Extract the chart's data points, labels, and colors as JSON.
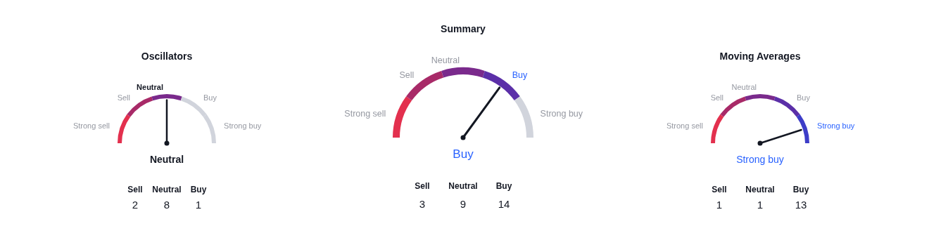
{
  "chart_data": [
    {
      "type": "donut",
      "title": "Oscillators",
      "categories": [
        "Strong sell",
        "Sell",
        "Neutral",
        "Buy",
        "Strong buy"
      ],
      "values": [
        20,
        20,
        20,
        20,
        20
      ],
      "colors": [
        "#e3304e",
        "#a82a68",
        "#7a2a8c",
        "#d1d4dc",
        "#d1d4dc"
      ],
      "needle": "Neutral",
      "annotations": [
        "Neutral",
        "Sell",
        "2",
        "Neutral",
        "8",
        "Buy",
        "1"
      ]
    },
    {
      "type": "donut",
      "title": "Summary",
      "categories": [
        "Strong sell",
        "Sell",
        "Neutral",
        "Buy",
        "Strong buy"
      ],
      "values": [
        20,
        20,
        20,
        20,
        20
      ],
      "colors": [
        "#e3304e",
        "#a82a68",
        "#7a2a8c",
        "#5b2fa8",
        "#d1d4dc"
      ],
      "needle": "Buy",
      "annotations": [
        "Buy",
        "Sell",
        "3",
        "Neutral",
        "9",
        "Buy",
        "14"
      ]
    },
    {
      "type": "donut",
      "title": "Moving Averages",
      "categories": [
        "Strong sell",
        "Sell",
        "Neutral",
        "Buy",
        "Strong buy"
      ],
      "values": [
        20,
        20,
        20,
        20,
        20
      ],
      "colors": [
        "#e3304e",
        "#a82a68",
        "#7a2a8c",
        "#5b2fa8",
        "#3d3dc8"
      ],
      "needle": "Strong buy",
      "annotations": [
        "Strong buy",
        "Sell",
        "1",
        "Neutral",
        "1",
        "Buy",
        "13"
      ]
    }
  ]
}
